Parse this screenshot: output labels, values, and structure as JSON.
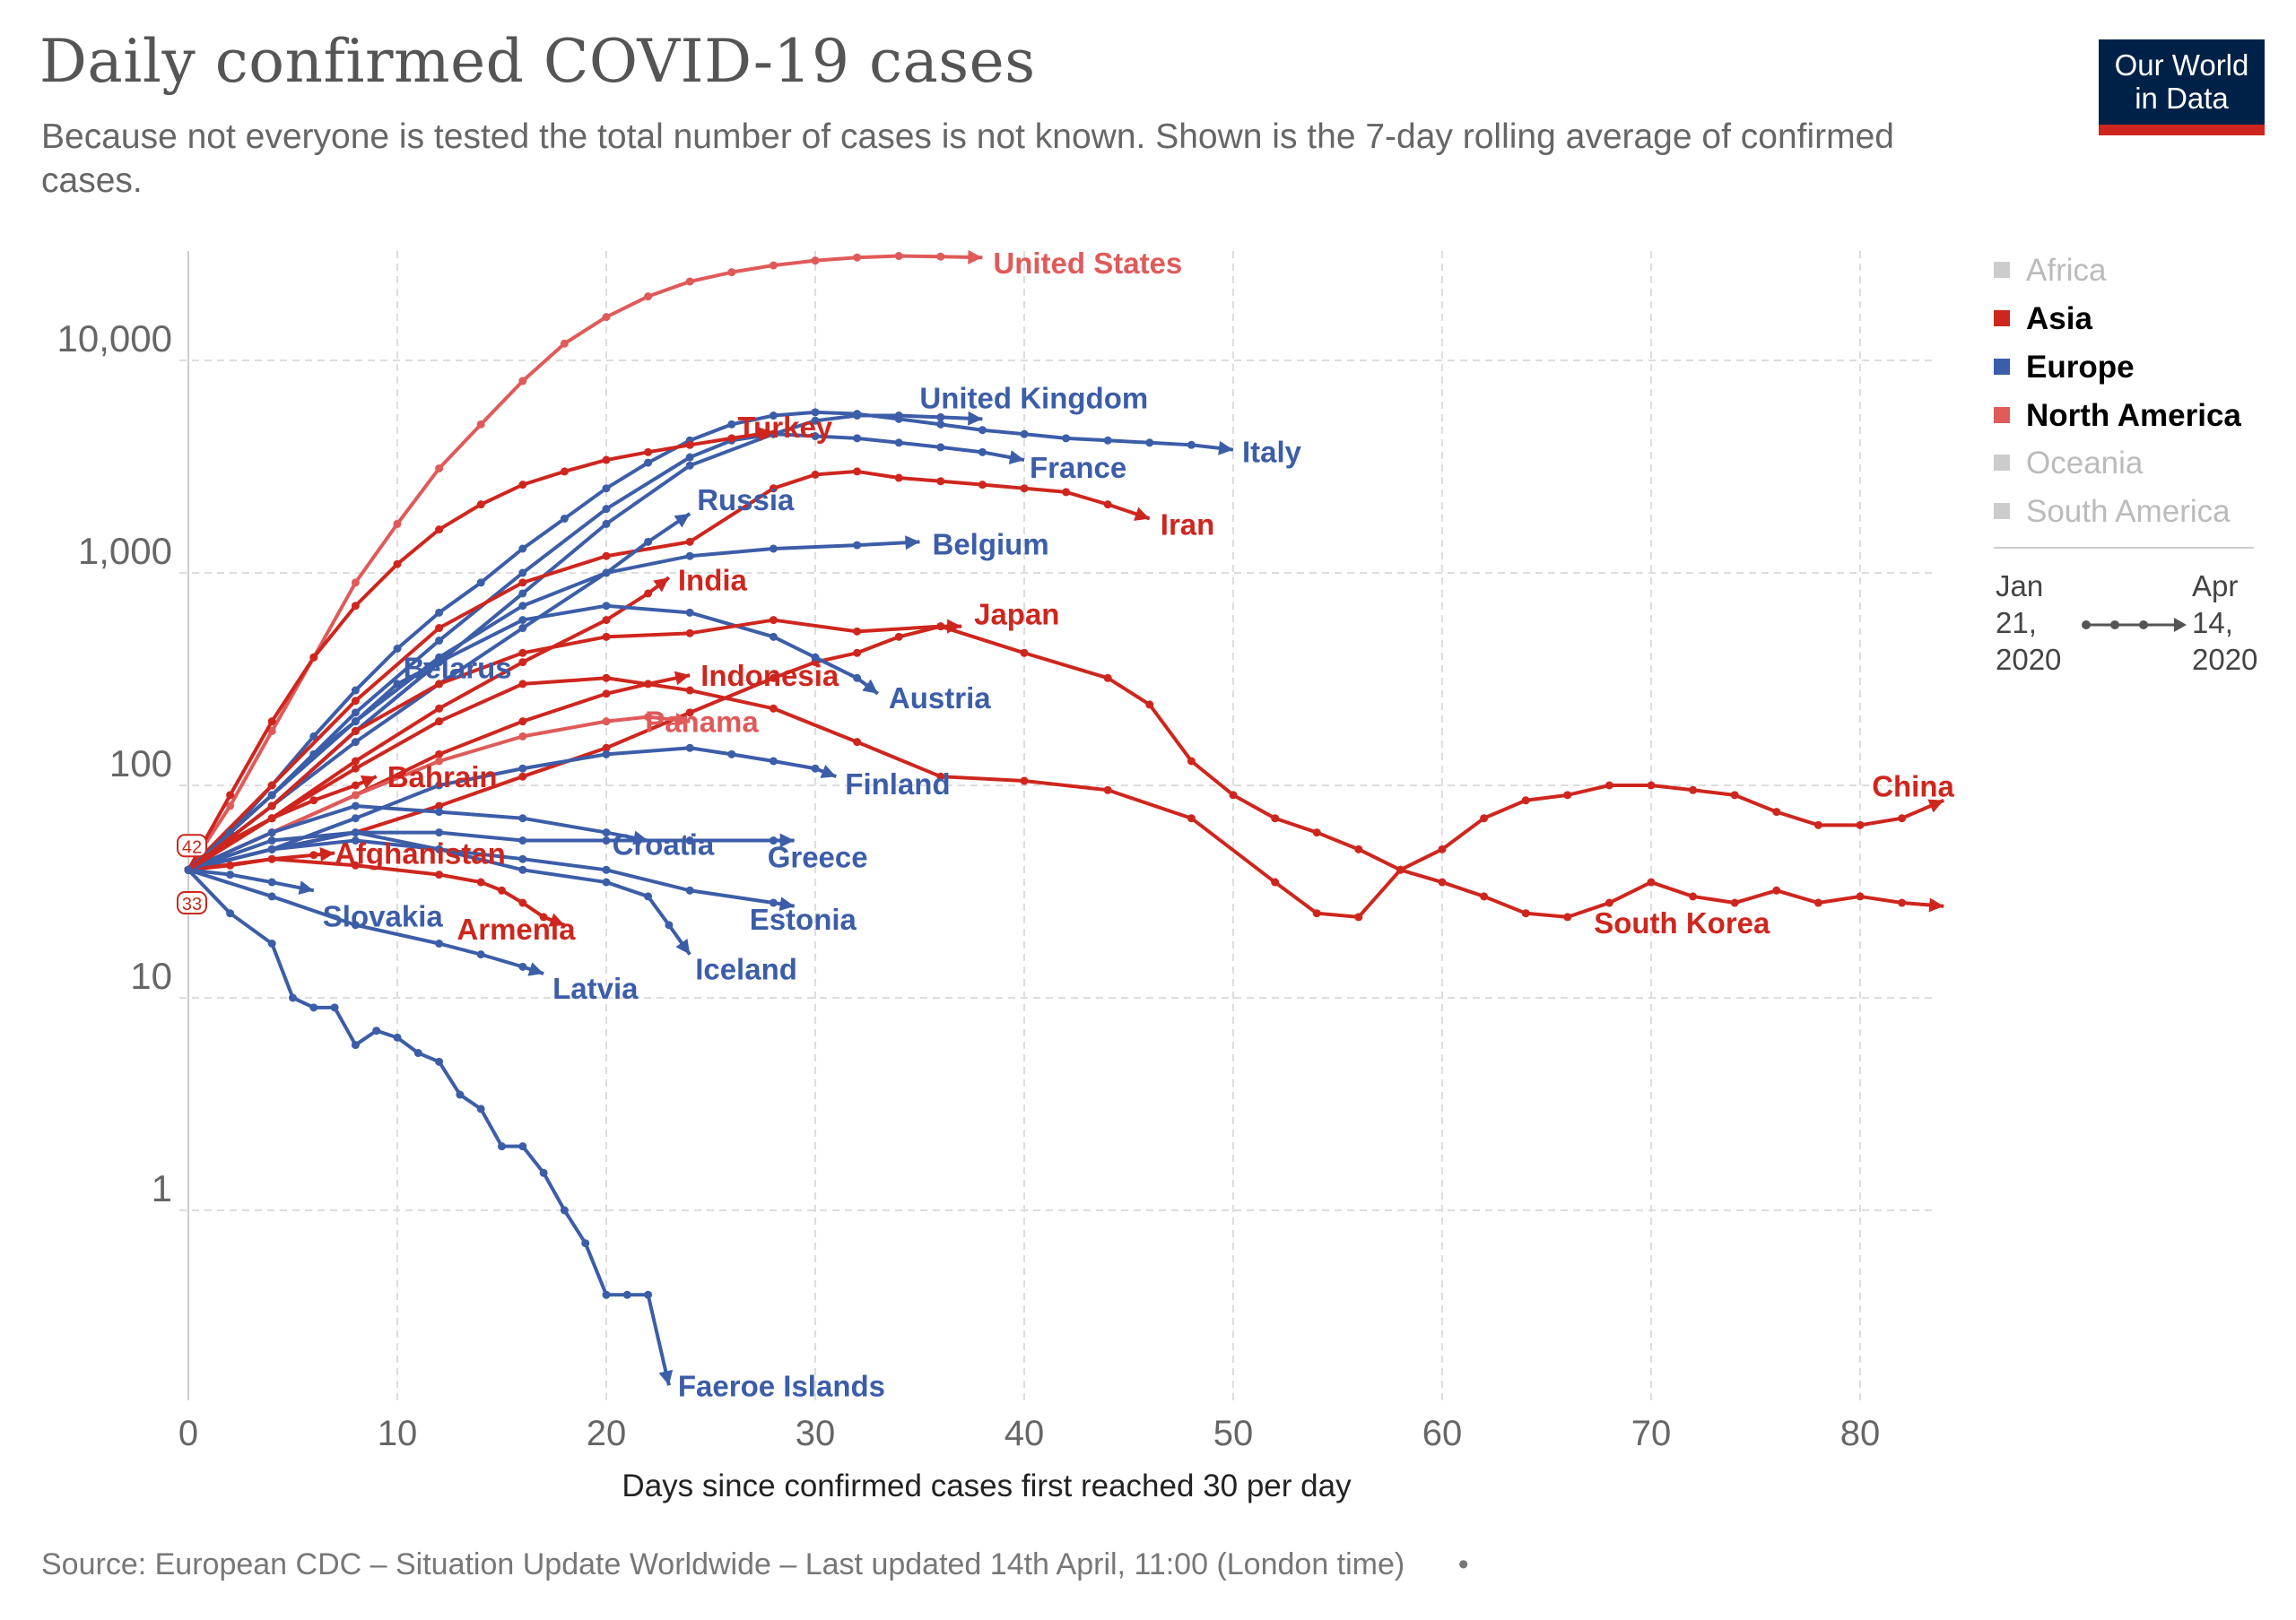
{
  "header": {
    "title": "Daily confirmed COVID-19 cases",
    "subtitle": "Because not everyone is tested the total number of cases is not known. Shown is the 7-day rolling average of confirmed cases.",
    "logo_line1": "Our World",
    "logo_line2": "in Data"
  },
  "footer": {
    "source": "Source: European CDC – Situation Update Worldwide – Last updated 14th April, 11:00 (London time)",
    "dot": "•"
  },
  "legend": {
    "items": [
      {
        "label": "Africa",
        "active": false,
        "color": "#cccccc"
      },
      {
        "label": "Asia",
        "active": true,
        "color": "#ce261e"
      },
      {
        "label": "Europe",
        "active": true,
        "color": "#3c5da8"
      },
      {
        "label": "North America",
        "active": true,
        "color": "#e05a5a"
      },
      {
        "label": "Oceania",
        "active": false,
        "color": "#cccccc"
      },
      {
        "label": "South America",
        "active": false,
        "color": "#cccccc"
      }
    ],
    "time_start": [
      "Jan",
      "21,",
      "2020"
    ],
    "time_end": [
      "Apr",
      "14,",
      "2020"
    ]
  },
  "colors": {
    "asia": "#ce261e",
    "europe": "#3c5da8",
    "north_america": "#e05a5a",
    "grid": "#dddddd"
  },
  "chart_data": {
    "type": "line",
    "xlabel": "Days since confirmed cases first reached 30 per day",
    "ylabel": "",
    "y_scale": "log",
    "xlim": [
      0,
      84
    ],
    "ylim": [
      0.15,
      30000
    ],
    "x_ticks": [
      0,
      10,
      20,
      30,
      40,
      50,
      60,
      70,
      80
    ],
    "y_ticks": [
      1,
      10,
      100,
      1000,
      10000
    ],
    "y_tick_labels": [
      "1",
      "10",
      "100",
      "1,000",
      "10,000"
    ],
    "grid": true,
    "start_markers": [
      "42",
      "33"
    ],
    "series": [
      {
        "name": "United States",
        "region": "north_america",
        "x": [
          0,
          2,
          4,
          6,
          8,
          10,
          12,
          14,
          16,
          18,
          20,
          22,
          24,
          26,
          28,
          30,
          32,
          34,
          36,
          38
        ],
        "y": [
          40,
          80,
          180,
          400,
          900,
          1700,
          3100,
          5000,
          8000,
          12000,
          16000,
          20000,
          23500,
          26000,
          28000,
          29500,
          30500,
          31000,
          30800,
          30500
        ]
      },
      {
        "name": "Italy",
        "region": "europe",
        "x": [
          0,
          2,
          4,
          6,
          8,
          10,
          12,
          14,
          16,
          18,
          20,
          22,
          24,
          26,
          28,
          30,
          32,
          34,
          36,
          38,
          40,
          42,
          44,
          46,
          48,
          50
        ],
        "y": [
          40,
          60,
          100,
          170,
          280,
          440,
          650,
          900,
          1300,
          1800,
          2500,
          3300,
          4200,
          5000,
          5500,
          5700,
          5600,
          5300,
          5000,
          4700,
          4500,
          4300,
          4200,
          4100,
          4000,
          3800
        ]
      },
      {
        "name": "United Kingdom",
        "region": "europe",
        "x": [
          0,
          4,
          8,
          12,
          16,
          20,
          24,
          28,
          30,
          32,
          34,
          36,
          38
        ],
        "y": [
          40,
          80,
          180,
          380,
          800,
          1700,
          3200,
          4500,
          5200,
          5500,
          5500,
          5400,
          5300
        ]
      },
      {
        "name": "France",
        "region": "europe",
        "x": [
          0,
          4,
          8,
          12,
          16,
          20,
          24,
          26,
          28,
          30,
          32,
          34,
          36,
          38,
          40
        ],
        "y": [
          40,
          90,
          220,
          480,
          1000,
          2000,
          3500,
          4200,
          4500,
          4400,
          4300,
          4100,
          3900,
          3700,
          3400
        ]
      },
      {
        "name": "Turkey",
        "region": "asia",
        "x": [
          0,
          2,
          4,
          6,
          8,
          10,
          12,
          14,
          16,
          18,
          20,
          22,
          24,
          26,
          28
        ],
        "y": [
          40,
          90,
          200,
          400,
          700,
          1100,
          1600,
          2100,
          2600,
          3000,
          3400,
          3700,
          4000,
          4300,
          4600
        ]
      },
      {
        "name": "Iran",
        "region": "asia",
        "x": [
          0,
          4,
          8,
          12,
          16,
          20,
          24,
          28,
          30,
          32,
          34,
          36,
          38,
          40,
          42,
          44,
          46
        ],
        "y": [
          40,
          100,
          250,
          550,
          900,
          1200,
          1400,
          2500,
          2900,
          3000,
          2800,
          2700,
          2600,
          2500,
          2400,
          2100,
          1800
        ]
      },
      {
        "name": "Russia",
        "region": "europe",
        "x": [
          0,
          4,
          8,
          12,
          16,
          20,
          22,
          24
        ],
        "y": [
          40,
          80,
          160,
          300,
          550,
          1000,
          1400,
          1900
        ]
      },
      {
        "name": "Belgium",
        "region": "europe",
        "x": [
          0,
          4,
          8,
          12,
          16,
          20,
          24,
          28,
          32,
          35
        ],
        "y": [
          40,
          90,
          200,
          400,
          700,
          1000,
          1200,
          1300,
          1350,
          1400
        ]
      },
      {
        "name": "India",
        "region": "asia",
        "x": [
          0,
          4,
          8,
          12,
          16,
          20,
          22,
          23
        ],
        "y": [
          40,
          70,
          130,
          230,
          380,
          600,
          800,
          950
        ]
      },
      {
        "name": "Japan",
        "region": "asia",
        "x": [
          0,
          4,
          8,
          12,
          16,
          20,
          24,
          28,
          30,
          32,
          34,
          36,
          37
        ],
        "y": [
          40,
          50,
          60,
          80,
          110,
          150,
          220,
          320,
          380,
          420,
          500,
          560,
          560
        ]
      },
      {
        "name": "Indonesia",
        "region": "asia",
        "x": [
          0,
          4,
          8,
          12,
          16,
          20,
          22,
          24
        ],
        "y": [
          40,
          60,
          90,
          140,
          200,
          270,
          300,
          330
        ]
      },
      {
        "name": "Austria",
        "region": "europe",
        "x": [
          0,
          4,
          8,
          12,
          16,
          20,
          24,
          28,
          30,
          32,
          33
        ],
        "y": [
          40,
          80,
          180,
          380,
          600,
          700,
          650,
          500,
          400,
          320,
          270
        ]
      },
      {
        "name": "Panama",
        "region": "north_america",
        "x": [
          0,
          4,
          8,
          12,
          16,
          20,
          22,
          24
        ],
        "y": [
          40,
          60,
          90,
          130,
          170,
          200,
          210,
          200
        ]
      },
      {
        "name": "Finland",
        "region": "europe",
        "x": [
          0,
          4,
          8,
          12,
          16,
          20,
          24,
          26,
          28,
          30,
          31
        ],
        "y": [
          40,
          50,
          70,
          100,
          120,
          140,
          150,
          140,
          130,
          120,
          110
        ]
      },
      {
        "name": "Bahrain",
        "region": "asia",
        "x": [
          0,
          2,
          4,
          6,
          8,
          9
        ],
        "y": [
          40,
          55,
          70,
          85,
          100,
          110
        ]
      },
      {
        "name": "Belarus",
        "region": "europe",
        "x": [
          0,
          2,
          4,
          6,
          8,
          10,
          12
        ],
        "y": [
          40,
          60,
          90,
          140,
          200,
          300,
          380
        ]
      },
      {
        "name": "Croatia",
        "region": "europe",
        "x": [
          0,
          4,
          8,
          12,
          16,
          20,
          22
        ],
        "y": [
          40,
          60,
          80,
          75,
          70,
          60,
          55
        ]
      },
      {
        "name": "Greece",
        "region": "europe",
        "x": [
          0,
          4,
          8,
          12,
          16,
          20,
          24,
          28,
          29
        ],
        "y": [
          40,
          50,
          60,
          60,
          55,
          55,
          55,
          55,
          55
        ]
      },
      {
        "name": "Afghanistan",
        "region": "asia",
        "x": [
          0,
          2,
          4,
          6,
          7
        ],
        "y": [
          40,
          42,
          45,
          47,
          48
        ]
      },
      {
        "name": "Estonia",
        "region": "europe",
        "x": [
          0,
          4,
          8,
          12,
          16,
          20,
          24,
          28,
          29
        ],
        "y": [
          40,
          50,
          55,
          50,
          45,
          40,
          32,
          28,
          27
        ]
      },
      {
        "name": "Armenia",
        "region": "asia",
        "x": [
          0,
          4,
          8,
          12,
          14,
          15,
          16,
          17,
          18
        ],
        "y": [
          40,
          45,
          42,
          38,
          35,
          32,
          28,
          24,
          22
        ]
      },
      {
        "name": "Slovakia",
        "region": "europe",
        "x": [
          0,
          2,
          4,
          6
        ],
        "y": [
          40,
          38,
          35,
          32
        ]
      },
      {
        "name": "Iceland",
        "region": "europe",
        "x": [
          0,
          4,
          8,
          12,
          16,
          20,
          22,
          23,
          24
        ],
        "y": [
          40,
          55,
          60,
          50,
          40,
          35,
          30,
          22,
          16
        ]
      },
      {
        "name": "Latvia",
        "region": "europe",
        "x": [
          0,
          4,
          8,
          12,
          14,
          16,
          17
        ],
        "y": [
          40,
          30,
          22,
          18,
          16,
          14,
          13
        ]
      },
      {
        "name": "South Korea",
        "region": "asia",
        "x": [
          0,
          4,
          8,
          12,
          16,
          20,
          24,
          28,
          32,
          36,
          40,
          44,
          46,
          48,
          50,
          52,
          54,
          56,
          58,
          60,
          62,
          64,
          66,
          68,
          70,
          72,
          74,
          76,
          78,
          80,
          82,
          84
        ],
        "y": [
          40,
          80,
          180,
          300,
          420,
          500,
          520,
          600,
          530,
          560,
          420,
          320,
          240,
          130,
          90,
          70,
          60,
          50,
          40,
          35,
          30,
          25,
          24,
          28,
          35,
          30,
          28,
          32,
          28,
          30,
          28,
          27
        ]
      },
      {
        "name": "China",
        "region": "asia",
        "x": [
          0,
          4,
          8,
          12,
          16,
          20,
          24,
          28,
          32,
          36,
          40,
          44,
          48,
          52,
          54,
          56,
          58,
          60,
          62,
          64,
          66,
          68,
          70,
          72,
          74,
          76,
          78,
          80,
          82,
          84
        ],
        "y": [
          40,
          70,
          120,
          200,
          300,
          320,
          280,
          230,
          160,
          110,
          105,
          95,
          70,
          35,
          25,
          24,
          40,
          50,
          70,
          85,
          90,
          100,
          100,
          95,
          90,
          75,
          65,
          65,
          70,
          85
        ]
      },
      {
        "name": "Faeroe Islands",
        "region": "europe",
        "x": [
          0,
          2,
          4,
          5,
          6,
          7,
          8,
          9,
          10,
          11,
          12,
          13,
          14,
          15,
          16,
          17,
          18,
          19,
          20,
          21,
          22,
          23
        ],
        "y": [
          40,
          25,
          18,
          10,
          9,
          9,
          6,
          7,
          6.5,
          5.5,
          5,
          3.5,
          3,
          2,
          2,
          1.5,
          1,
          0.7,
          0.4,
          0.4,
          0.4,
          0.15
        ]
      }
    ]
  }
}
